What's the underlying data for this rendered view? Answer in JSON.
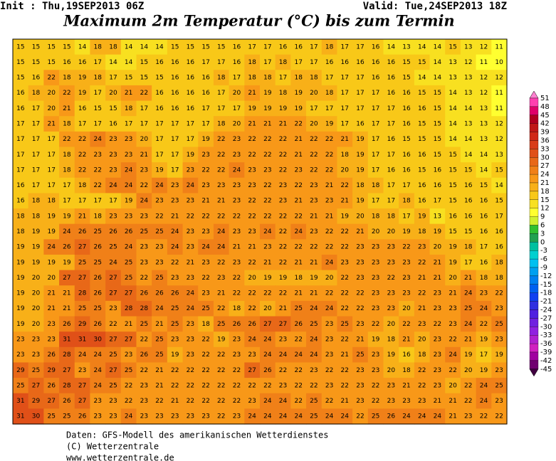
{
  "header": {
    "init": "Init : Thu,19SEP2013 06Z",
    "valid": "Valid: Tue,24SEP2013 18Z",
    "title": "Maximum 2m Temperatur (°C) bis zum Termin"
  },
  "map": {
    "values": [
      [
        15,
        15,
        15,
        15,
        14,
        18,
        18,
        14,
        14,
        14,
        15,
        15,
        15,
        15,
        16,
        17,
        17,
        16,
        16,
        17,
        18,
        17,
        17,
        16,
        14,
        13,
        14,
        14,
        15,
        13,
        12,
        11
      ],
      [
        15,
        15,
        15,
        16,
        16,
        17,
        14,
        14,
        15,
        16,
        16,
        16,
        17,
        17,
        16,
        18,
        17,
        18,
        17,
        17,
        16,
        16,
        16,
        16,
        16,
        15,
        15,
        14,
        13,
        12,
        11,
        10
      ],
      [
        15,
        16,
        22,
        18,
        19,
        18,
        17,
        15,
        15,
        15,
        16,
        16,
        16,
        18,
        17,
        18,
        18,
        17,
        18,
        18,
        17,
        17,
        17,
        16,
        16,
        15,
        14,
        14,
        13,
        13,
        12,
        12
      ],
      [
        16,
        18,
        20,
        22,
        19,
        17,
        20,
        21,
        22,
        16,
        16,
        16,
        16,
        17,
        20,
        21,
        19,
        18,
        19,
        20,
        18,
        17,
        17,
        17,
        16,
        16,
        15,
        15,
        14,
        13,
        12,
        11
      ],
      [
        16,
        17,
        20,
        21,
        16,
        15,
        15,
        18,
        17,
        16,
        16,
        16,
        17,
        17,
        17,
        19,
        19,
        19,
        19,
        17,
        17,
        17,
        17,
        17,
        17,
        16,
        16,
        15,
        14,
        14,
        13,
        11
      ],
      [
        17,
        17,
        21,
        18,
        17,
        17,
        16,
        17,
        17,
        17,
        17,
        17,
        17,
        18,
        20,
        21,
        21,
        21,
        22,
        20,
        19,
        17,
        16,
        17,
        17,
        16,
        15,
        15,
        14,
        13,
        13,
        12
      ],
      [
        17,
        17,
        17,
        22,
        22,
        24,
        23,
        23,
        20,
        17,
        17,
        17,
        19,
        22,
        23,
        22,
        22,
        22,
        21,
        22,
        22,
        21,
        19,
        17,
        16,
        15,
        15,
        15,
        14,
        14,
        13,
        12
      ],
      [
        17,
        17,
        17,
        18,
        22,
        23,
        23,
        23,
        21,
        17,
        17,
        19,
        23,
        22,
        23,
        22,
        22,
        22,
        21,
        22,
        22,
        18,
        19,
        17,
        17,
        16,
        16,
        15,
        15,
        14,
        14,
        13
      ],
      [
        17,
        17,
        17,
        18,
        22,
        22,
        23,
        24,
        23,
        19,
        17,
        23,
        22,
        22,
        24,
        23,
        23,
        22,
        23,
        22,
        22,
        20,
        19,
        17,
        16,
        16,
        15,
        16,
        15,
        15,
        14,
        15
      ],
      [
        16,
        17,
        17,
        17,
        18,
        22,
        24,
        24,
        22,
        24,
        23,
        24,
        23,
        23,
        23,
        23,
        22,
        23,
        22,
        23,
        21,
        22,
        18,
        18,
        17,
        17,
        16,
        16,
        15,
        16,
        15,
        14
      ],
      [
        16,
        18,
        18,
        17,
        17,
        17,
        17,
        19,
        24,
        23,
        23,
        23,
        21,
        21,
        23,
        22,
        22,
        23,
        21,
        23,
        23,
        21,
        19,
        17,
        17,
        18,
        16,
        17,
        15,
        16,
        16,
        15
      ],
      [
        18,
        18,
        19,
        19,
        21,
        18,
        23,
        23,
        23,
        22,
        21,
        22,
        22,
        22,
        22,
        22,
        22,
        22,
        22,
        21,
        21,
        19,
        20,
        18,
        18,
        17,
        19,
        13,
        16,
        16,
        16,
        17
      ],
      [
        18,
        19,
        19,
        24,
        26,
        25,
        26,
        26,
        25,
        25,
        24,
        23,
        23,
        24,
        23,
        23,
        24,
        22,
        24,
        23,
        22,
        22,
        21,
        20,
        20,
        19,
        18,
        19,
        15,
        15,
        16,
        16
      ],
      [
        19,
        19,
        24,
        26,
        27,
        26,
        25,
        24,
        23,
        23,
        24,
        23,
        24,
        24,
        21,
        21,
        23,
        22,
        22,
        22,
        22,
        22,
        23,
        23,
        23,
        22,
        23,
        20,
        19,
        18,
        17,
        16
      ],
      [
        19,
        19,
        19,
        19,
        25,
        25,
        24,
        25,
        23,
        23,
        22,
        21,
        23,
        22,
        23,
        22,
        21,
        22,
        21,
        21,
        24,
        23,
        23,
        23,
        23,
        23,
        22,
        21,
        19,
        17,
        16,
        18
      ],
      [
        19,
        20,
        20,
        27,
        27,
        26,
        27,
        25,
        22,
        25,
        23,
        23,
        22,
        23,
        22,
        20,
        19,
        19,
        18,
        19,
        20,
        22,
        23,
        23,
        22,
        23,
        21,
        21,
        20,
        21,
        18,
        18
      ],
      [
        19,
        20,
        21,
        21,
        28,
        26,
        27,
        27,
        26,
        26,
        26,
        24,
        23,
        21,
        22,
        22,
        22,
        22,
        21,
        21,
        22,
        22,
        22,
        23,
        23,
        23,
        22,
        23,
        21,
        24,
        23,
        22
      ],
      [
        19,
        20,
        21,
        21,
        25,
        25,
        23,
        28,
        28,
        24,
        25,
        24,
        25,
        22,
        18,
        22,
        20,
        21,
        25,
        24,
        24,
        22,
        22,
        23,
        23,
        20,
        21,
        23,
        23,
        25,
        24,
        23
      ],
      [
        19,
        20,
        23,
        26,
        29,
        26,
        22,
        21,
        25,
        21,
        25,
        23,
        18,
        25,
        26,
        26,
        27,
        27,
        26,
        25,
        23,
        25,
        23,
        22,
        20,
        22,
        23,
        22,
        23,
        24,
        22,
        25
      ],
      [
        23,
        23,
        23,
        31,
        31,
        30,
        27,
        27,
        22,
        25,
        23,
        23,
        22,
        19,
        23,
        24,
        24,
        23,
        22,
        24,
        23,
        22,
        21,
        19,
        18,
        21,
        20,
        23,
        22,
        21,
        19,
        23
      ],
      [
        23,
        23,
        26,
        28,
        24,
        24,
        25,
        23,
        26,
        25,
        19,
        23,
        22,
        22,
        23,
        23,
        24,
        24,
        24,
        24,
        23,
        21,
        25,
        23,
        19,
        16,
        18,
        23,
        24,
        19,
        17,
        19
      ],
      [
        29,
        25,
        29,
        27,
        23,
        24,
        27,
        25,
        22,
        21,
        22,
        22,
        22,
        22,
        22,
        27,
        26,
        22,
        22,
        23,
        22,
        22,
        23,
        23,
        20,
        18,
        22,
        23,
        22,
        20,
        19,
        23
      ],
      [
        25,
        27,
        26,
        28,
        27,
        24,
        25,
        22,
        23,
        21,
        22,
        22,
        22,
        22,
        22,
        22,
        22,
        23,
        22,
        22,
        23,
        22,
        23,
        22,
        23,
        21,
        22,
        23,
        20,
        22,
        24,
        25
      ],
      [
        31,
        29,
        27,
        26,
        27,
        23,
        23,
        22,
        23,
        22,
        21,
        22,
        22,
        22,
        22,
        23,
        24,
        24,
        22,
        25,
        22,
        21,
        23,
        22,
        23,
        23,
        23,
        21,
        21,
        22,
        24,
        23
      ],
      [
        31,
        30,
        25,
        25,
        26,
        23,
        23,
        24,
        23,
        23,
        23,
        23,
        23,
        22,
        23,
        24,
        24,
        24,
        24,
        25,
        24,
        24,
        22,
        25,
        26,
        24,
        24,
        24,
        21,
        23,
        22,
        22
      ]
    ]
  },
  "legend": {
    "levels": [
      51,
      48,
      45,
      42,
      39,
      36,
      33,
      30,
      27,
      24,
      21,
      18,
      15,
      12,
      9,
      6,
      3,
      0,
      -3,
      -6,
      -9,
      -12,
      -15,
      -18,
      -21,
      -24,
      -27,
      -30,
      -33,
      -36,
      -39,
      -42,
      -45
    ],
    "colors": [
      "#ff80d0",
      "#ff40b0",
      "#e0006a",
      "#b00020",
      "#c01818",
      "#d02818",
      "#d83c18",
      "#e05018",
      "#e86818",
      "#f08018",
      "#f89818",
      "#f8b018",
      "#f8c818",
      "#f8e020",
      "#ffff30",
      "#d0f030",
      "#30c030",
      "#20a050",
      "#00c0a0",
      "#00d0d0",
      "#00c0f0",
      "#00a0f0",
      "#0080f0",
      "#0060f0",
      "#1040f0",
      "#3030e0",
      "#5020e0",
      "#7020e0",
      "#9020e0",
      "#b020d0",
      "#d020c0",
      "#a000a0",
      "#700070",
      "#400040"
    ]
  },
  "footer": {
    "lines": [
      "Daten: GFS-Modell des amerikanischen Wetterdienstes",
      "(C) Wetterzentrale",
      "www.wetterzentrale.de"
    ]
  }
}
